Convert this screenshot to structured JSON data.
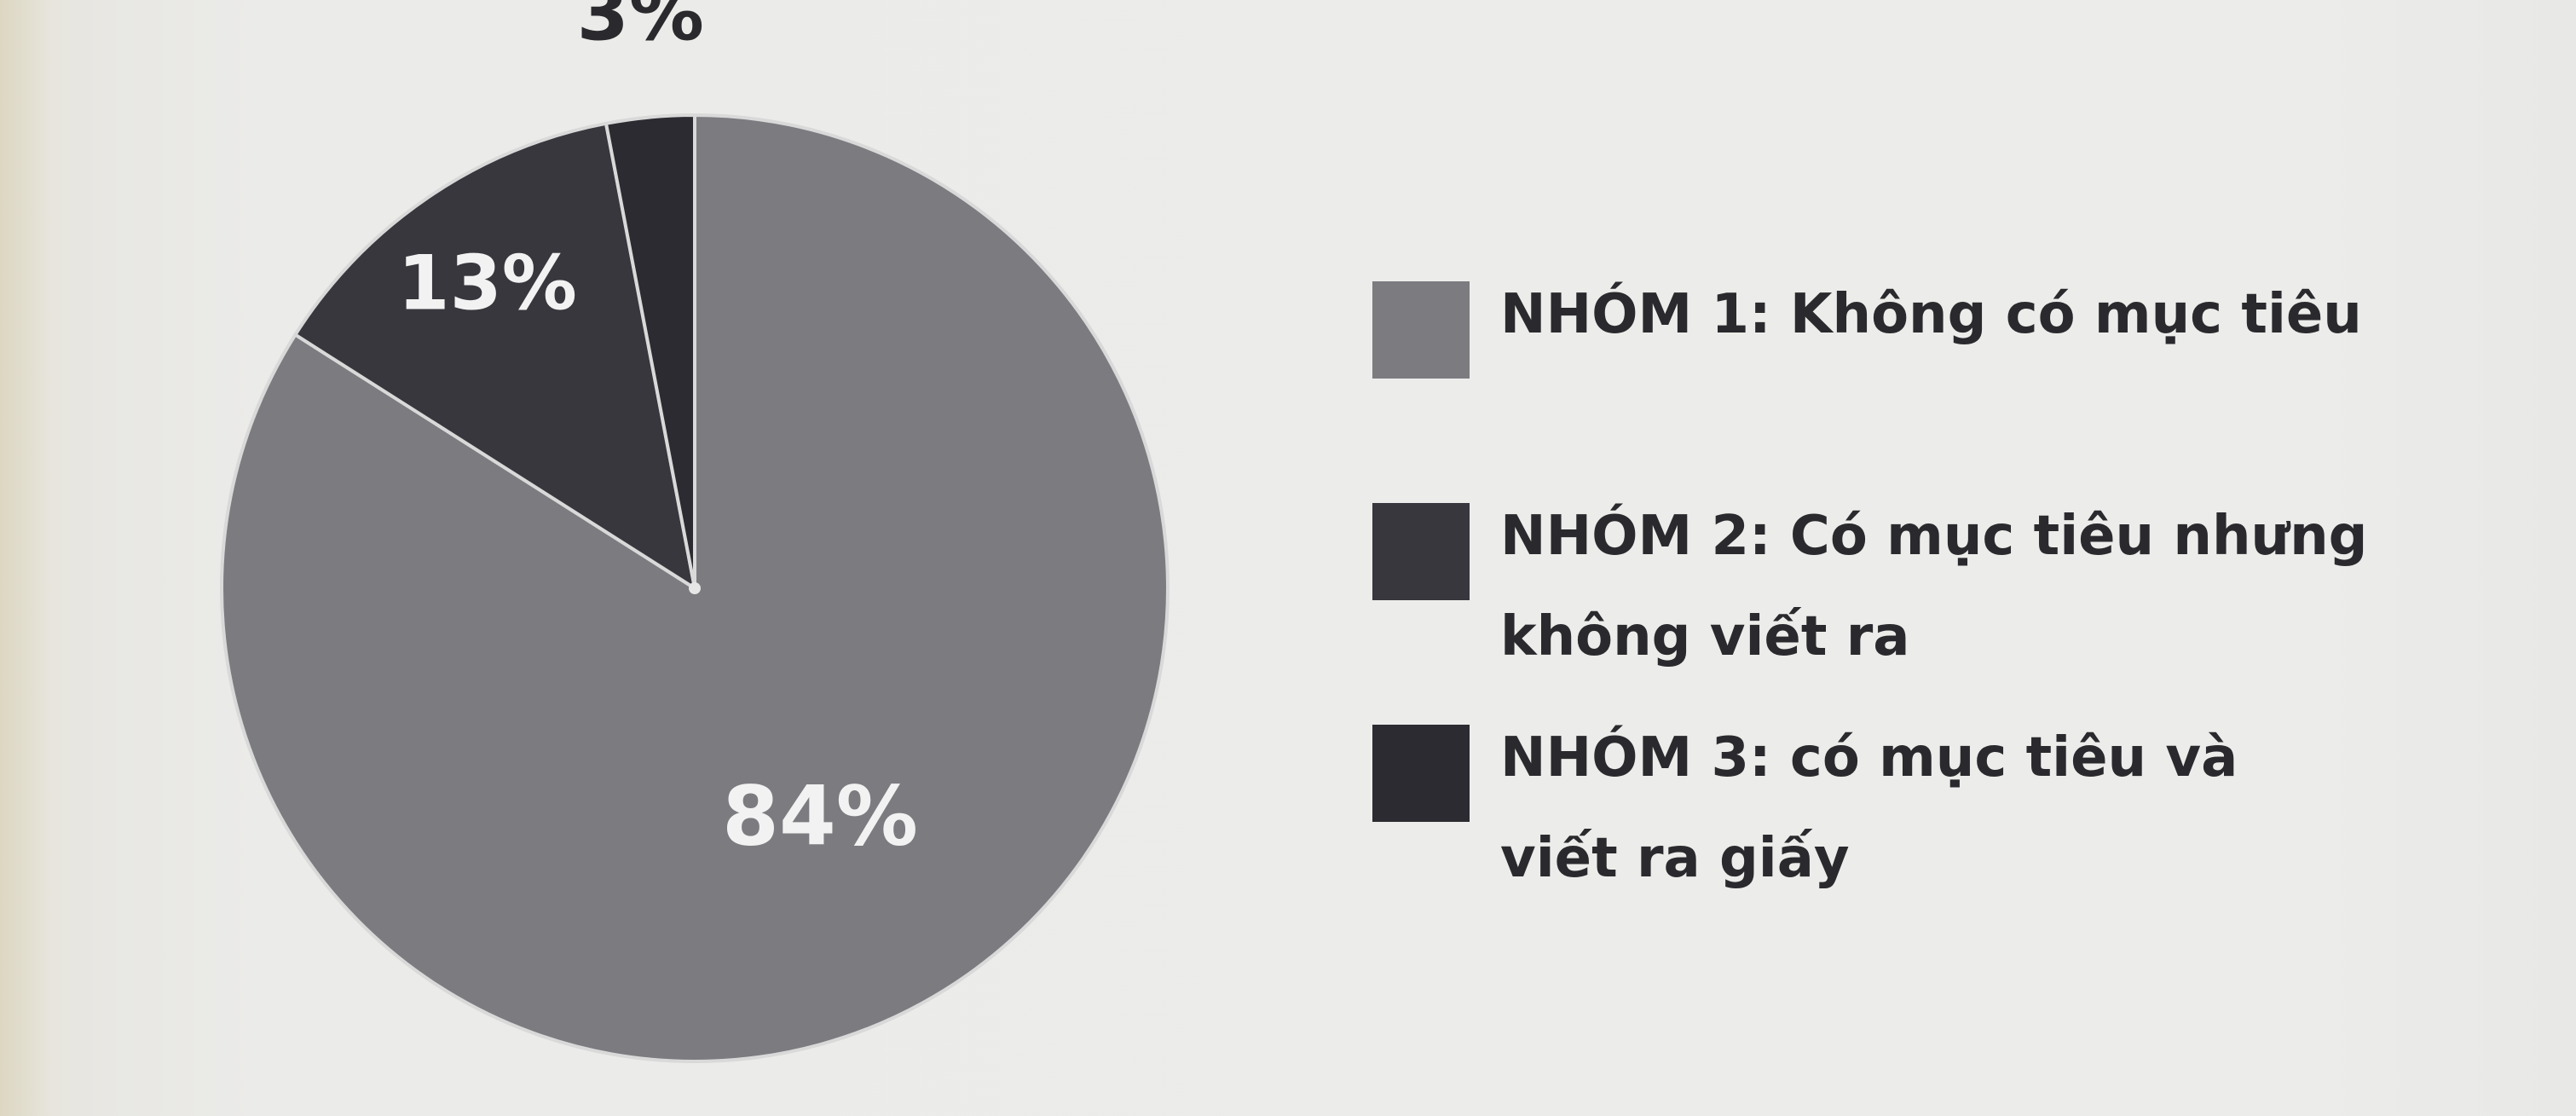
{
  "chart_data": {
    "type": "pie",
    "slices": [
      {
        "label": "NHÓM 1: Không có mục tiêu",
        "value": 84,
        "value_label": "84%",
        "color": "#7b7b80"
      },
      {
        "label": "NHÓM 2: Có mục tiêu nhưng không viết ra",
        "value": 13,
        "value_label": "13%",
        "color": "#37373d"
      },
      {
        "label": "NHÓM 3: có mục tiêu và viết ra giấy",
        "value": 3,
        "value_label": "3%",
        "color": "#2b2b31"
      }
    ],
    "start_angle": "12 o'clock",
    "direction": "clockwise",
    "legend_position": "right",
    "title": ""
  },
  "legend": {
    "items": [
      {
        "label": "NHÓM 1: Không có mục tiêu",
        "color": "#7b7b80"
      },
      {
        "label": "NHÓM 2: Có mục tiêu nhưng\nkhông viết ra",
        "color": "#37373d"
      },
      {
        "label": "NHÓM 3: có mục tiêu và\nviết ra giấy",
        "color": "#2b2b31"
      }
    ]
  }
}
